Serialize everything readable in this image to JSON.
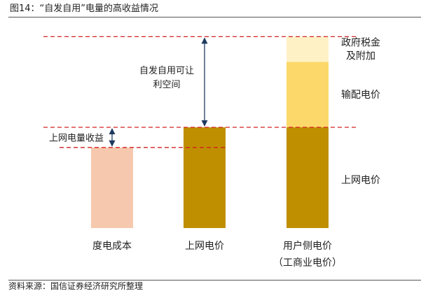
{
  "figure": {
    "title": "图14：“自发自用”电量的高收益情况",
    "source": "资料来源：国信证券经济研究所整理"
  },
  "colors": {
    "cost_bar": "#f6c8ae",
    "grid_price": "#c08f00",
    "distribution": "#fcd86a",
    "tax": "#fef1c5",
    "dashed": "#d42222",
    "arrow": "#1f3a5f"
  },
  "chart_data": {
    "type": "bar",
    "stacked": true,
    "categories": [
      "度电成本",
      "上网电价",
      "用户侧电价"
    ],
    "category_sublabels": [
      "",
      "",
      "（工商业电价）"
    ],
    "series": [
      {
        "name": "上网电价",
        "values": [
          0,
          1.0,
          1.0
        ]
      },
      {
        "name": "输配电价",
        "values": [
          0,
          0,
          0.65
        ]
      },
      {
        "name": "政府税金及附加",
        "values": [
          0,
          0,
          0.25
        ]
      }
    ],
    "cost_value": 0.8,
    "ylim": [
      0,
      1.95
    ],
    "grid": false,
    "annotations": [
      {
        "label": "上网电量收益",
        "from": 0.8,
        "to": 1.0
      },
      {
        "label_lines": [
          "自发自用可让",
          "利空间"
        ],
        "from": 1.0,
        "to": 1.9
      }
    ],
    "segment_labels": [
      {
        "series": "政府税金及附加",
        "lines": [
          "政府税金",
          "及附加"
        ]
      },
      {
        "series": "输配电价",
        "lines": [
          "输配电价"
        ]
      },
      {
        "series": "上网电价",
        "lines": [
          "上网电价"
        ]
      }
    ]
  }
}
